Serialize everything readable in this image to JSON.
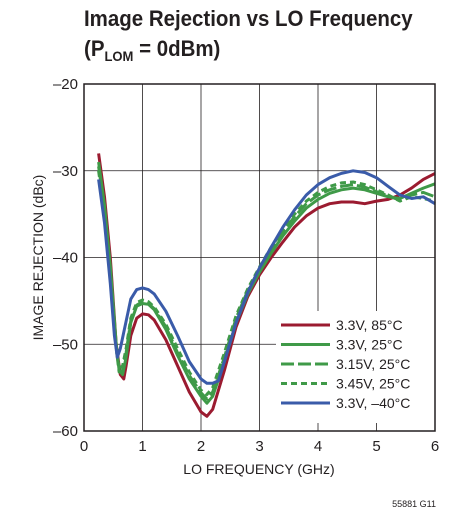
{
  "title": {
    "line1": "Image Rejection vs LO Frequency",
    "line2_prefix": "(P",
    "line2_sub": "LOM",
    "line2_suffix": " = 0dBm)"
  },
  "figure_id": "55881 G11",
  "chart_data": {
    "type": "line",
    "title": "Image Rejection vs LO Frequency (PLOM = 0dBm)",
    "xlabel": "LO FREQUENCY (GHz)",
    "ylabel": "IMAGE REJECTION (dBc)",
    "xlim": [
      0,
      6
    ],
    "ylim": [
      -60,
      -20
    ],
    "xticks": [
      0,
      1,
      2,
      3,
      4,
      5,
      6
    ],
    "yticks": [
      -60,
      -50,
      -40,
      -30,
      -20
    ],
    "xtick_labels": [
      "0",
      "1",
      "2",
      "3",
      "4",
      "5",
      "6"
    ],
    "ytick_labels": [
      "–60",
      "–50",
      "–40",
      "–30",
      "–20"
    ],
    "grid": true,
    "legend_position": "bottom-right",
    "series": [
      {
        "name": "3.3V, 85°C",
        "color": "#9b1b30",
        "dash": "solid",
        "points": [
          [
            0.25,
            -28.0
          ],
          [
            0.35,
            -33.0
          ],
          [
            0.45,
            -40.0
          ],
          [
            0.55,
            -50.0
          ],
          [
            0.62,
            -53.5
          ],
          [
            0.68,
            -54.0
          ],
          [
            0.72,
            -52.5
          ],
          [
            0.8,
            -49.0
          ],
          [
            0.9,
            -47.0
          ],
          [
            1.0,
            -46.5
          ],
          [
            1.1,
            -46.6
          ],
          [
            1.2,
            -47.2
          ],
          [
            1.4,
            -49.5
          ],
          [
            1.6,
            -52.5
          ],
          [
            1.8,
            -55.5
          ],
          [
            2.0,
            -57.8
          ],
          [
            2.1,
            -58.3
          ],
          [
            2.2,
            -57.5
          ],
          [
            2.4,
            -53.0
          ],
          [
            2.6,
            -48.0
          ],
          [
            2.8,
            -44.5
          ],
          [
            3.0,
            -42.0
          ],
          [
            3.2,
            -40.0
          ],
          [
            3.4,
            -38.2
          ],
          [
            3.6,
            -36.5
          ],
          [
            3.8,
            -35.2
          ],
          [
            4.0,
            -34.3
          ],
          [
            4.2,
            -33.8
          ],
          [
            4.4,
            -33.6
          ],
          [
            4.6,
            -33.6
          ],
          [
            4.8,
            -33.8
          ],
          [
            5.0,
            -33.5
          ],
          [
            5.2,
            -33.3
          ],
          [
            5.4,
            -32.8
          ],
          [
            5.6,
            -32.0
          ],
          [
            5.8,
            -31.0
          ],
          [
            6.0,
            -30.3
          ]
        ]
      },
      {
        "name": "3.3V, 25°C",
        "color": "#3f9a48",
        "dash": "solid",
        "points": [
          [
            0.25,
            -29.0
          ],
          [
            0.35,
            -34.0
          ],
          [
            0.45,
            -41.0
          ],
          [
            0.55,
            -50.0
          ],
          [
            0.6,
            -53.0
          ],
          [
            0.66,
            -53.5
          ],
          [
            0.72,
            -51.5
          ],
          [
            0.8,
            -47.5
          ],
          [
            0.9,
            -45.6
          ],
          [
            1.0,
            -45.3
          ],
          [
            1.1,
            -45.4
          ],
          [
            1.2,
            -46.0
          ],
          [
            1.4,
            -48.3
          ],
          [
            1.6,
            -51.3
          ],
          [
            1.8,
            -54.0
          ],
          [
            2.0,
            -56.0
          ],
          [
            2.1,
            -56.8
          ],
          [
            2.2,
            -56.0
          ],
          [
            2.4,
            -52.0
          ],
          [
            2.6,
            -47.5
          ],
          [
            2.8,
            -44.2
          ],
          [
            3.0,
            -41.7
          ],
          [
            3.2,
            -39.5
          ],
          [
            3.4,
            -37.5
          ],
          [
            3.6,
            -35.8
          ],
          [
            3.8,
            -34.3
          ],
          [
            4.0,
            -33.3
          ],
          [
            4.2,
            -32.6
          ],
          [
            4.4,
            -32.2
          ],
          [
            4.6,
            -32.0
          ],
          [
            4.8,
            -32.2
          ],
          [
            5.0,
            -32.6
          ],
          [
            5.2,
            -33.0
          ],
          [
            5.4,
            -33.2
          ],
          [
            5.6,
            -32.6
          ],
          [
            5.8,
            -32.0
          ],
          [
            6.0,
            -31.5
          ]
        ]
      },
      {
        "name": "3.15V, 25°C",
        "color": "#3f9a48",
        "dash": "long",
        "points": [
          [
            0.25,
            -29.5
          ],
          [
            0.35,
            -34.5
          ],
          [
            0.45,
            -41.5
          ],
          [
            0.55,
            -50.5
          ],
          [
            0.6,
            -53.2
          ],
          [
            0.66,
            -53.0
          ],
          [
            0.72,
            -51.0
          ],
          [
            0.8,
            -47.3
          ],
          [
            0.9,
            -45.5
          ],
          [
            1.0,
            -45.1
          ],
          [
            1.1,
            -45.3
          ],
          [
            1.2,
            -45.9
          ],
          [
            1.4,
            -48.0
          ],
          [
            1.6,
            -51.0
          ],
          [
            1.8,
            -53.6
          ],
          [
            2.0,
            -55.6
          ],
          [
            2.1,
            -56.3
          ],
          [
            2.2,
            -55.5
          ],
          [
            2.4,
            -51.5
          ],
          [
            2.6,
            -47.0
          ],
          [
            2.8,
            -43.8
          ],
          [
            3.0,
            -41.3
          ],
          [
            3.2,
            -39.0
          ],
          [
            3.4,
            -37.0
          ],
          [
            3.6,
            -35.3
          ],
          [
            3.8,
            -33.8
          ],
          [
            4.0,
            -32.8
          ],
          [
            4.2,
            -32.2
          ],
          [
            4.4,
            -31.8
          ],
          [
            4.6,
            -31.6
          ],
          [
            4.8,
            -31.9
          ],
          [
            5.0,
            -32.4
          ],
          [
            5.2,
            -32.9
          ],
          [
            5.4,
            -33.4
          ],
          [
            5.6,
            -32.8
          ],
          [
            5.8,
            -32.5
          ],
          [
            6.0,
            -33.0
          ]
        ]
      },
      {
        "name": "3.45V, 25°C",
        "color": "#3f9a48",
        "dash": "short",
        "points": [
          [
            0.25,
            -30.0
          ],
          [
            0.35,
            -35.0
          ],
          [
            0.45,
            -42.0
          ],
          [
            0.55,
            -50.5
          ],
          [
            0.6,
            -52.8
          ],
          [
            0.66,
            -52.5
          ],
          [
            0.72,
            -50.5
          ],
          [
            0.8,
            -47.0
          ],
          [
            0.9,
            -45.2
          ],
          [
            1.0,
            -44.9
          ],
          [
            1.1,
            -45.1
          ],
          [
            1.2,
            -45.7
          ],
          [
            1.4,
            -47.7
          ],
          [
            1.6,
            -50.5
          ],
          [
            1.8,
            -53.2
          ],
          [
            2.0,
            -55.3
          ],
          [
            2.1,
            -55.8
          ],
          [
            2.2,
            -55.0
          ],
          [
            2.4,
            -51.0
          ],
          [
            2.6,
            -46.7
          ],
          [
            2.8,
            -43.6
          ],
          [
            3.0,
            -41.1
          ],
          [
            3.2,
            -38.8
          ],
          [
            3.4,
            -36.8
          ],
          [
            3.6,
            -35.0
          ],
          [
            3.8,
            -33.5
          ],
          [
            4.0,
            -32.5
          ],
          [
            4.2,
            -31.8
          ],
          [
            4.4,
            -31.4
          ],
          [
            4.6,
            -31.3
          ],
          [
            4.8,
            -31.6
          ],
          [
            5.0,
            -32.2
          ],
          [
            5.2,
            -32.8
          ],
          [
            5.4,
            -33.5
          ],
          [
            5.6,
            -33.0
          ],
          [
            5.8,
            -33.2
          ],
          [
            6.0,
            -33.5
          ]
        ]
      },
      {
        "name": "3.3V, –40°C",
        "color": "#3a5ba9",
        "dash": "solid",
        "points": [
          [
            0.25,
            -31.0
          ],
          [
            0.35,
            -36.0
          ],
          [
            0.45,
            -43.0
          ],
          [
            0.52,
            -49.0
          ],
          [
            0.57,
            -51.5
          ],
          [
            0.62,
            -50.5
          ],
          [
            0.7,
            -48.0
          ],
          [
            0.8,
            -44.8
          ],
          [
            0.9,
            -43.7
          ],
          [
            1.0,
            -43.5
          ],
          [
            1.1,
            -43.7
          ],
          [
            1.2,
            -44.2
          ],
          [
            1.4,
            -46.2
          ],
          [
            1.6,
            -49.0
          ],
          [
            1.8,
            -52.0
          ],
          [
            2.0,
            -54.0
          ],
          [
            2.1,
            -54.5
          ],
          [
            2.2,
            -54.5
          ],
          [
            2.3,
            -54.2
          ],
          [
            2.4,
            -52.0
          ],
          [
            2.6,
            -47.5
          ],
          [
            2.8,
            -44.0
          ],
          [
            3.0,
            -41.2
          ],
          [
            3.2,
            -38.8
          ],
          [
            3.4,
            -36.5
          ],
          [
            3.6,
            -34.5
          ],
          [
            3.8,
            -32.8
          ],
          [
            4.0,
            -31.6
          ],
          [
            4.2,
            -30.8
          ],
          [
            4.4,
            -30.3
          ],
          [
            4.6,
            -30.0
          ],
          [
            4.8,
            -30.2
          ],
          [
            5.0,
            -30.8
          ],
          [
            5.2,
            -31.8
          ],
          [
            5.4,
            -32.8
          ],
          [
            5.6,
            -33.2
          ],
          [
            5.8,
            -33.0
          ],
          [
            6.0,
            -33.8
          ]
        ]
      }
    ]
  }
}
